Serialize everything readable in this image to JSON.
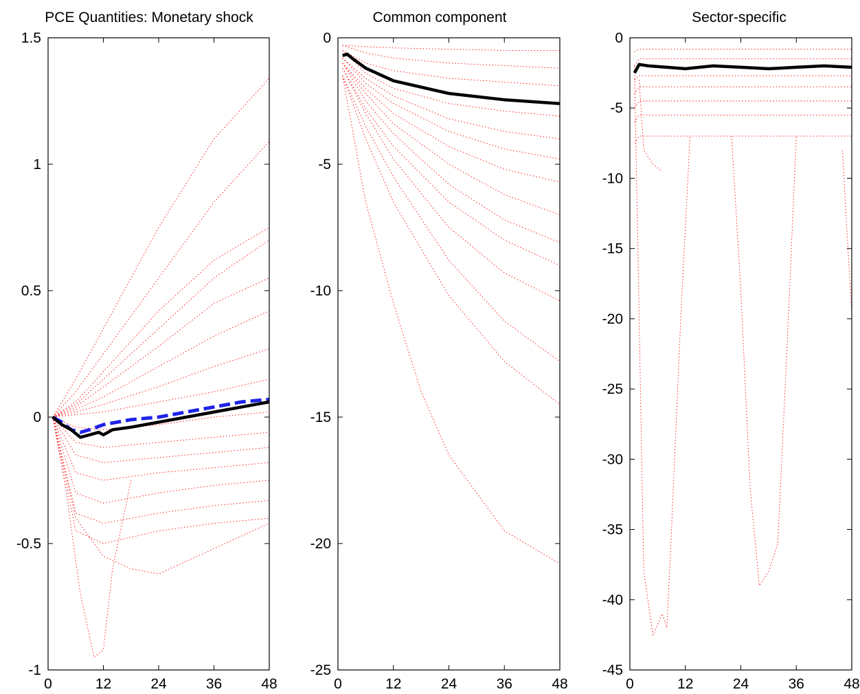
{
  "chart_data": [
    {
      "type": "line",
      "title": "PCE Quantities: Monetary shock",
      "xlabel": "",
      "ylabel": "",
      "xlim": [
        0,
        48
      ],
      "ylim": [
        -1,
        1.5
      ],
      "xticks": [
        0,
        12,
        24,
        36,
        48
      ],
      "xtick_labels": [
        "0",
        "12",
        "24",
        "36",
        "48"
      ],
      "yticks": [
        -1,
        -0.5,
        0,
        0.5,
        1,
        1.5
      ],
      "ytick_labels": [
        "-1",
        "-0.5",
        "0",
        "0.5",
        "1",
        "1.5"
      ],
      "grid": false,
      "legend": "none",
      "series_colors": {
        "sectors": "#ff0000",
        "median": "#000000",
        "aggregate": "#1f23e8"
      },
      "series": [
        {
          "style": "solid-black",
          "x": [
            1,
            3,
            5,
            7,
            9,
            11,
            12,
            14,
            18,
            24,
            30,
            36,
            42,
            48
          ],
          "values": [
            0,
            -0.03,
            -0.05,
            -0.08,
            -0.07,
            -0.06,
            -0.07,
            -0.05,
            -0.04,
            -0.02,
            0.0,
            0.02,
            0.04,
            0.06
          ]
        },
        {
          "style": "dashed-blue",
          "x": [
            1,
            3,
            5,
            7,
            9,
            12,
            18,
            24,
            30,
            36,
            42,
            48
          ],
          "values": [
            0,
            -0.02,
            -0.05,
            -0.06,
            -0.05,
            -0.03,
            -0.01,
            0.0,
            0.02,
            0.04,
            0.06,
            0.07
          ]
        },
        {
          "style": "dotted-red",
          "x": [
            1,
            6,
            12,
            24,
            36,
            48
          ],
          "values": [
            0,
            0.15,
            0.35,
            0.75,
            1.1,
            1.34
          ]
        },
        {
          "style": "dotted-red",
          "x": [
            1,
            6,
            12,
            24,
            36,
            48
          ],
          "values": [
            0,
            0.1,
            0.25,
            0.55,
            0.85,
            1.09
          ]
        },
        {
          "style": "dotted-red",
          "x": [
            1,
            6,
            12,
            24,
            36,
            48
          ],
          "values": [
            0,
            0.06,
            0.18,
            0.42,
            0.62,
            0.75
          ]
        },
        {
          "style": "dotted-red",
          "x": [
            1,
            6,
            12,
            24,
            36,
            48
          ],
          "values": [
            0,
            0.05,
            0.15,
            0.35,
            0.55,
            0.7
          ]
        },
        {
          "style": "dotted-red",
          "x": [
            1,
            6,
            12,
            24,
            36,
            48
          ],
          "values": [
            0,
            0.04,
            0.12,
            0.28,
            0.45,
            0.55
          ]
        },
        {
          "style": "dotted-red",
          "x": [
            1,
            6,
            12,
            24,
            36,
            48
          ],
          "values": [
            0,
            0.03,
            0.08,
            0.2,
            0.32,
            0.42
          ]
        },
        {
          "style": "dotted-red",
          "x": [
            1,
            6,
            12,
            24,
            36,
            48
          ],
          "values": [
            0,
            0.02,
            0.05,
            0.12,
            0.2,
            0.27
          ]
        },
        {
          "style": "dotted-red",
          "x": [
            1,
            6,
            12,
            24,
            36,
            48
          ],
          "values": [
            0,
            0.01,
            0.02,
            0.06,
            0.1,
            0.15
          ]
        },
        {
          "style": "dotted-red",
          "x": [
            1,
            6,
            12,
            24,
            36,
            48
          ],
          "values": [
            0,
            -0.04,
            -0.05,
            -0.03,
            0.0,
            0.02
          ]
        },
        {
          "style": "dotted-red",
          "x": [
            1,
            6,
            12,
            24,
            36,
            48
          ],
          "values": [
            0,
            -0.1,
            -0.12,
            -0.1,
            -0.08,
            -0.06
          ]
        },
        {
          "style": "dotted-red",
          "x": [
            1,
            6,
            12,
            24,
            36,
            48
          ],
          "values": [
            0,
            -0.15,
            -0.18,
            -0.16,
            -0.14,
            -0.12
          ]
        },
        {
          "style": "dotted-red",
          "x": [
            1,
            6,
            12,
            24,
            36,
            48
          ],
          "values": [
            0,
            -0.22,
            -0.25,
            -0.22,
            -0.2,
            -0.18
          ]
        },
        {
          "style": "dotted-red",
          "x": [
            1,
            6,
            12,
            24,
            36,
            48
          ],
          "values": [
            0,
            -0.3,
            -0.34,
            -0.3,
            -0.27,
            -0.25
          ]
        },
        {
          "style": "dotted-red",
          "x": [
            1,
            6,
            12,
            24,
            36,
            48
          ],
          "values": [
            0,
            -0.38,
            -0.42,
            -0.38,
            -0.35,
            -0.33
          ]
        },
        {
          "style": "dotted-red",
          "x": [
            1,
            6,
            12,
            24,
            36,
            48
          ],
          "values": [
            0,
            -0.45,
            -0.5,
            -0.45,
            -0.42,
            -0.4
          ]
        },
        {
          "style": "dotted-red",
          "x": [
            1,
            6,
            12,
            18,
            24,
            36,
            48
          ],
          "values": [
            0,
            -0.4,
            -0.55,
            -0.6,
            -0.62,
            -0.52,
            -0.42
          ]
        },
        {
          "style": "dotted-red",
          "x": [
            1,
            4,
            7,
            10,
            12,
            14,
            18
          ],
          "values": [
            0,
            -0.3,
            -0.7,
            -0.95,
            -0.92,
            -0.6,
            -0.25
          ]
        }
      ]
    },
    {
      "type": "line",
      "title": "Common component",
      "xlabel": "",
      "ylabel": "",
      "xlim": [
        0,
        48
      ],
      "ylim": [
        -25,
        0
      ],
      "xticks": [
        0,
        12,
        24,
        36,
        48
      ],
      "xtick_labels": [
        "0",
        "12",
        "24",
        "36",
        "48"
      ],
      "yticks": [
        -25,
        -20,
        -15,
        -10,
        -5,
        0
      ],
      "ytick_labels": [
        "-25",
        "-20",
        "-15",
        "-10",
        "-5",
        "0"
      ],
      "grid": false,
      "legend": "none",
      "series_colors": {
        "sectors": "#ff0000",
        "median": "#000000"
      },
      "series": [
        {
          "style": "solid-black",
          "x": [
            1,
            2,
            3,
            6,
            12,
            24,
            36,
            48
          ],
          "values": [
            -0.7,
            -0.65,
            -0.8,
            -1.2,
            -1.7,
            -2.2,
            -2.45,
            -2.6
          ]
        },
        {
          "style": "dotted-red",
          "x": [
            1,
            6,
            12,
            24,
            36,
            48
          ],
          "values": [
            -0.3,
            -0.35,
            -0.4,
            -0.45,
            -0.5,
            -0.5
          ]
        },
        {
          "style": "dotted-red",
          "x": [
            1,
            6,
            12,
            24,
            36,
            48
          ],
          "values": [
            -0.3,
            -0.6,
            -0.8,
            -1.0,
            -1.1,
            -1.2
          ]
        },
        {
          "style": "dotted-red",
          "x": [
            1,
            6,
            12,
            24,
            36,
            48
          ],
          "values": [
            -0.5,
            -1.0,
            -1.3,
            -1.6,
            -1.75,
            -1.9
          ]
        },
        {
          "style": "dotted-red",
          "x": [
            1,
            6,
            12,
            24,
            36,
            48
          ],
          "values": [
            -0.5,
            -1.4,
            -2.0,
            -2.6,
            -2.9,
            -3.1
          ]
        },
        {
          "style": "dotted-red",
          "x": [
            1,
            6,
            12,
            24,
            36,
            48
          ],
          "values": [
            -0.8,
            -1.6,
            -2.3,
            -3.2,
            -3.7,
            -4.0
          ]
        },
        {
          "style": "dotted-red",
          "x": [
            1,
            6,
            12,
            24,
            36,
            48
          ],
          "values": [
            -0.8,
            -1.8,
            -2.6,
            -3.7,
            -4.4,
            -4.8
          ]
        },
        {
          "style": "dotted-red",
          "x": [
            1,
            6,
            12,
            24,
            36,
            48
          ],
          "values": [
            -1.0,
            -2.0,
            -3.0,
            -4.3,
            -5.2,
            -5.7
          ]
        },
        {
          "style": "dotted-red",
          "x": [
            1,
            6,
            12,
            24,
            36,
            48
          ],
          "values": [
            -1.0,
            -2.2,
            -3.4,
            -5.0,
            -6.2,
            -7.0
          ]
        },
        {
          "style": "dotted-red",
          "x": [
            1,
            6,
            12,
            24,
            36,
            48
          ],
          "values": [
            -1.0,
            -2.5,
            -3.8,
            -5.8,
            -7.2,
            -8.1
          ]
        },
        {
          "style": "dotted-red",
          "x": [
            1,
            6,
            12,
            24,
            36,
            48
          ],
          "values": [
            -1.2,
            -2.8,
            -4.3,
            -6.5,
            -8.0,
            -9.0
          ]
        },
        {
          "style": "dotted-red",
          "x": [
            1,
            6,
            12,
            24,
            36,
            48
          ],
          "values": [
            -1.2,
            -3.0,
            -4.8,
            -7.5,
            -9.3,
            -10.4
          ]
        },
        {
          "style": "dotted-red",
          "x": [
            1,
            6,
            12,
            24,
            36,
            48
          ],
          "values": [
            -1.5,
            -3.5,
            -5.5,
            -8.8,
            -11.2,
            -12.8
          ]
        },
        {
          "style": "dotted-red",
          "x": [
            1,
            6,
            12,
            24,
            36,
            48
          ],
          "values": [
            -1.5,
            -4.0,
            -6.5,
            -10.2,
            -12.8,
            -14.5
          ]
        },
        {
          "style": "dotted-red",
          "x": [
            1,
            6,
            12,
            18,
            24,
            36,
            48
          ],
          "values": [
            -1.5,
            -6.5,
            -10.5,
            -14.0,
            -16.5,
            -19.5,
            -20.8
          ]
        }
      ]
    },
    {
      "type": "line",
      "title": "Sector-specific",
      "xlabel": "",
      "ylabel": "",
      "xlim": [
        0,
        48
      ],
      "ylim": [
        -45,
        0
      ],
      "xticks": [
        0,
        12,
        24,
        36,
        48
      ],
      "xtick_labels": [
        "0",
        "12",
        "24",
        "36",
        "48"
      ],
      "yticks": [
        -45,
        -40,
        -35,
        -30,
        -25,
        -20,
        -15,
        -10,
        -5,
        0
      ],
      "ytick_labels": [
        "-45",
        "-40",
        "-35",
        "-30",
        "-25",
        "-20",
        "-15",
        "-10",
        "-5",
        "0"
      ],
      "grid": false,
      "legend": "none",
      "series_colors": {
        "sectors": "#ff0000",
        "median": "#000000"
      },
      "series": [
        {
          "style": "solid-black",
          "x": [
            1,
            2,
            4,
            8,
            12,
            18,
            24,
            30,
            36,
            42,
            48
          ],
          "values": [
            -2.5,
            -1.9,
            -2.0,
            -2.1,
            -2.2,
            -2.0,
            -2.1,
            -2.2,
            -2.1,
            -2.0,
            -2.1
          ]
        },
        {
          "style": "dotted-red",
          "x": [
            1,
            2,
            48
          ],
          "values": [
            -1.0,
            -0.8,
            -0.8
          ]
        },
        {
          "style": "dotted-red",
          "x": [
            1,
            2,
            48
          ],
          "values": [
            -2.0,
            -1.5,
            -1.5
          ]
        },
        {
          "style": "dotted-red",
          "x": [
            1,
            2,
            48
          ],
          "values": [
            -3.0,
            -2.7,
            -2.7
          ]
        },
        {
          "style": "dotted-red",
          "x": [
            1,
            2,
            48
          ],
          "values": [
            -4.0,
            -3.5,
            -3.5
          ]
        },
        {
          "style": "dotted-red",
          "x": [
            1,
            2,
            48
          ],
          "values": [
            -5.0,
            -4.5,
            -4.5
          ]
        },
        {
          "style": "dotted-red",
          "x": [
            1,
            2,
            48
          ],
          "values": [
            -6.0,
            -5.5,
            -5.5
          ]
        },
        {
          "style": "dotted-red",
          "x": [
            1,
            2,
            48
          ],
          "values": [
            -7.5,
            -7.0,
            -7.0
          ]
        },
        {
          "style": "dotted-red",
          "x": [
            1,
            2,
            3,
            5,
            7,
            8,
            9,
            11,
            13
          ],
          "values": [
            -2.0,
            -20.0,
            -38.0,
            -42.5,
            -41.0,
            -42.0,
            -35.0,
            -20.0,
            -7.0
          ]
        },
        {
          "style": "dotted-red",
          "x": [
            22,
            24,
            26,
            28,
            30,
            32,
            34,
            36
          ],
          "values": [
            -7.0,
            -18.0,
            -32.0,
            -39.0,
            -38.0,
            -36.0,
            -22.0,
            -7.0
          ]
        },
        {
          "style": "dotted-red",
          "x": [
            46,
            47,
            48
          ],
          "values": [
            -8.0,
            -14.0,
            -19.5
          ]
        },
        {
          "style": "dotted-red",
          "x": [
            2,
            3,
            5,
            7
          ],
          "values": [
            -3.0,
            -8.0,
            -9.0,
            -9.5
          ]
        }
      ]
    }
  ]
}
